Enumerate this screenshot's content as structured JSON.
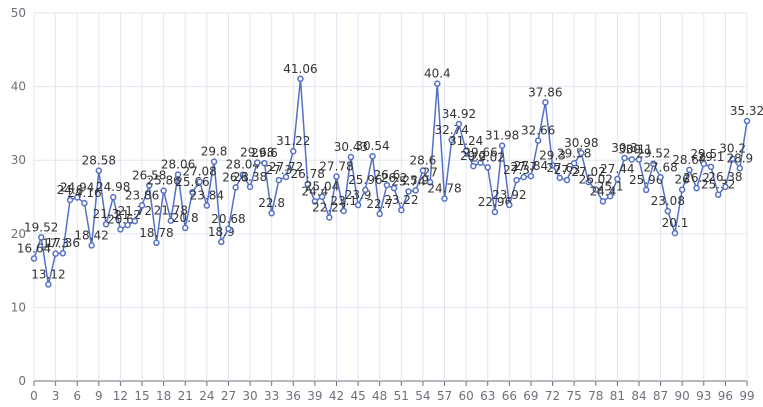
{
  "chart_data": {
    "type": "line",
    "x": [
      0,
      1,
      2,
      3,
      4,
      5,
      6,
      7,
      8,
      9,
      10,
      11,
      12,
      13,
      14,
      15,
      16,
      17,
      18,
      19,
      20,
      21,
      22,
      23,
      24,
      25,
      26,
      27,
      28,
      29,
      30,
      31,
      32,
      33,
      34,
      35,
      36,
      37,
      38,
      39,
      40,
      41,
      42,
      43,
      44,
      45,
      46,
      47,
      48,
      49,
      50,
      51,
      52,
      53,
      54,
      55,
      56,
      57,
      58,
      59,
      60,
      61,
      62,
      63,
      64,
      65,
      66,
      67,
      68,
      69,
      70,
      71,
      72,
      73,
      74,
      75,
      76,
      77,
      78,
      79,
      80,
      81,
      82,
      83,
      84,
      85,
      86,
      87,
      88,
      89,
      90,
      91,
      92,
      93,
      94,
      95,
      96,
      97,
      98,
      99
    ],
    "series": [
      {
        "color": "#5470c6",
        "values": [
          16.64,
          19.52,
          13.12,
          17.3,
          17.36,
          24.6,
          24.94,
          24.16,
          18.42,
          28.58,
          21.3,
          24.98,
          20.6,
          21.2,
          21.72,
          23.86,
          26.58,
          18.78,
          25.86,
          21.78,
          28.06,
          20.8,
          25.66,
          27.08,
          23.84,
          29.8,
          18.9,
          20.68,
          26.3,
          28.04,
          26.38,
          29.68,
          29.6,
          22.8,
          27.3,
          27.72,
          31.22,
          41.06,
          26.78,
          24.4,
          25.04,
          22.22,
          27.78,
          23.1,
          30.43,
          23.9,
          25.96,
          30.54,
          22.7,
          26.6,
          26.2,
          23.22,
          25.74,
          25.9,
          28.6,
          27,
          40.4,
          24.78,
          32.74,
          34.92,
          31.24,
          29.2,
          29.66,
          29.02,
          22.96,
          31.98,
          23.92,
          27.3,
          27.7,
          27.84,
          32.66,
          37.86,
          29.3,
          27.6,
          27.3,
          29.58,
          30.98,
          27.02,
          26.02,
          24.4,
          25.1,
          27.44,
          30.3,
          30.1,
          30.1,
          25.96,
          29.52,
          27.68,
          23.08,
          20.1,
          26,
          28.68,
          26.2,
          29.5,
          29.1,
          25.32,
          26.38,
          30.2,
          28.9,
          35.32
        ]
      }
    ],
    "xlim": [
      0,
      99
    ],
    "xticks": [
      0,
      3,
      6,
      9,
      12,
      15,
      18,
      21,
      24,
      27,
      30,
      33,
      36,
      39,
      42,
      45,
      48,
      51,
      54,
      57,
      60,
      63,
      66,
      69,
      72,
      75,
      78,
      81,
      84,
      87,
      90,
      93,
      96,
      99
    ],
    "ylim": [
      0,
      50
    ],
    "yticks": [
      0,
      10,
      20,
      30,
      40,
      50
    ],
    "grid": true
  }
}
